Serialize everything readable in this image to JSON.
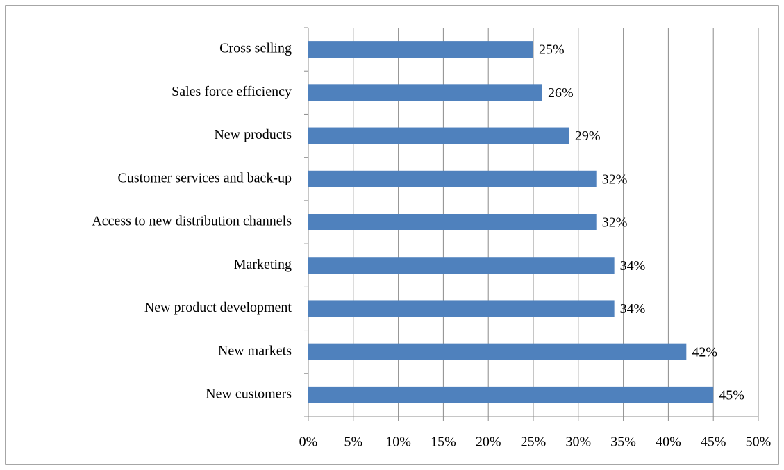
{
  "chart_data": {
    "type": "barh",
    "categories": [
      "Cross selling",
      "Sales force efficiency",
      "New products",
      "Customer services and back-up",
      "Access to new distribution channels",
      "Marketing",
      "New product development",
      "New markets",
      "New customers"
    ],
    "values": [
      25,
      26,
      29,
      32,
      32,
      34,
      34,
      42,
      45
    ],
    "value_labels": [
      "25%",
      "26%",
      "29%",
      "32%",
      "32%",
      "34%",
      "34%",
      "42%",
      "45%"
    ],
    "color": "#4f81bd",
    "xlim": [
      0,
      50
    ],
    "xticks": [
      {
        "value": 0,
        "label": "0%"
      },
      {
        "value": 5,
        "label": "5%"
      },
      {
        "value": 10,
        "label": "10%"
      },
      {
        "value": 15,
        "label": "15%"
      },
      {
        "value": 20,
        "label": "20%"
      },
      {
        "value": 25,
        "label": "25%"
      },
      {
        "value": 30,
        "label": "30%"
      },
      {
        "value": 35,
        "label": "35%"
      },
      {
        "value": 40,
        "label": "40%"
      },
      {
        "value": 45,
        "label": "45%"
      },
      {
        "value": 50,
        "label": "50%"
      }
    ],
    "grid": true
  }
}
